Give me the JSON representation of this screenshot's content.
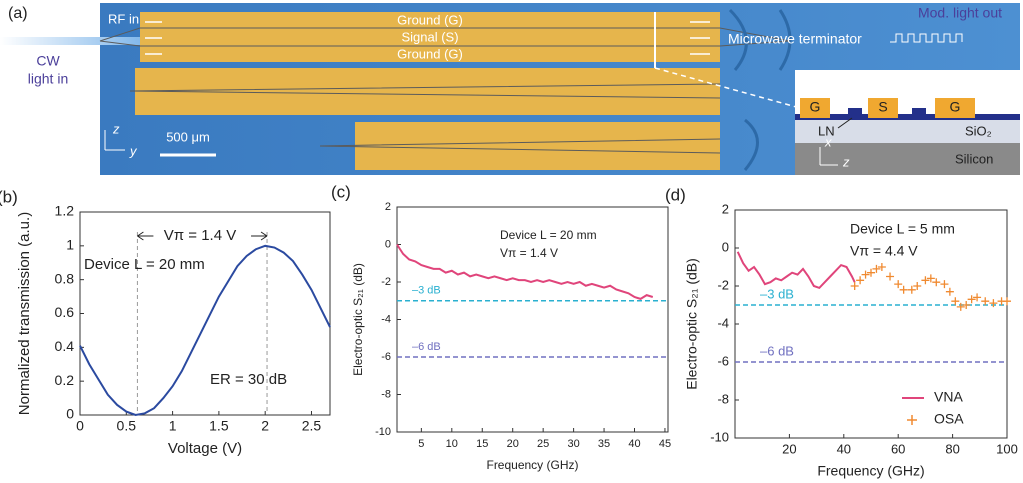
{
  "photo": {
    "label": "(a)",
    "rf_in": "RF in",
    "cw": "CW",
    "light_in": "light in",
    "strip_labels": [
      "Ground (G)",
      "Signal (S)",
      "Ground (G)"
    ],
    "terminator": "Microwave terminator",
    "light_out": "Mod. light out",
    "scale": "500 μm",
    "axis_z": "z",
    "axis_y": "y",
    "inset": {
      "electrodes": [
        "G",
        "S",
        "G"
      ],
      "ln": "LN",
      "sio2": "SiO₂",
      "axis_x": "x",
      "axis_z": "z",
      "silicon": "Silicon"
    }
  },
  "chart_data": [
    {
      "type": "line",
      "panel": "(b)",
      "xlabel": "Voltage (V)",
      "ylabel": "Normalized transmission (a.u.)",
      "x": [
        0,
        0.1,
        0.2,
        0.3,
        0.4,
        0.5,
        0.6,
        0.7,
        0.8,
        0.9,
        1.0,
        1.1,
        1.2,
        1.3,
        1.4,
        1.5,
        1.6,
        1.7,
        1.8,
        1.9,
        2.0,
        2.1,
        2.2,
        2.3,
        2.4,
        2.5,
        2.6,
        2.7
      ],
      "values": [
        0.41,
        0.3,
        0.21,
        0.12,
        0.06,
        0.02,
        0.0,
        0.01,
        0.04,
        0.1,
        0.17,
        0.26,
        0.37,
        0.48,
        0.59,
        0.7,
        0.79,
        0.88,
        0.94,
        0.98,
        1.0,
        0.99,
        0.96,
        0.91,
        0.83,
        0.74,
        0.63,
        0.52
      ],
      "color": "#2b4aa0",
      "xlim": [
        0,
        2.7
      ],
      "ylim": [
        0,
        1.2
      ],
      "xticks": [
        0,
        0.5,
        1,
        1.5,
        2,
        2.5
      ],
      "yticks": [
        0,
        0.2,
        0.4,
        0.6,
        0.8,
        1,
        1.2
      ],
      "vlines": [
        0.62,
        2.02
      ],
      "annotations": [
        "Vπ = 1.4 V",
        "Device L = 20 mm",
        "ER = 30 dB"
      ]
    },
    {
      "type": "line",
      "panel": "(c)",
      "xlabel": "Frequency (GHz)",
      "ylabel": "Electro-optic S₂₁ (dB)",
      "x": [
        1,
        2,
        3,
        4,
        5,
        6,
        7,
        8,
        9,
        10,
        11,
        12,
        13,
        14,
        15,
        16,
        17,
        18,
        19,
        20,
        21,
        22,
        23,
        24,
        25,
        26,
        27,
        28,
        29,
        30,
        31,
        32,
        33,
        34,
        35,
        36,
        37,
        38,
        39,
        40,
        41,
        42,
        43
      ],
      "values": [
        0,
        -0.5,
        -0.8,
        -0.9,
        -1.1,
        -1.2,
        -1.3,
        -1.3,
        -1.5,
        -1.4,
        -1.6,
        -1.5,
        -1.7,
        -1.6,
        -1.7,
        -1.8,
        -1.7,
        -1.8,
        -1.9,
        -1.8,
        -1.9,
        -1.9,
        -2.0,
        -1.9,
        -2.0,
        -1.9,
        -2.0,
        -2.1,
        -2.0,
        -2.1,
        -2.0,
        -2.2,
        -2.1,
        -2.2,
        -2.3,
        -2.2,
        -2.4,
        -2.5,
        -2.6,
        -2.8,
        -2.9,
        -2.7,
        -2.8
      ],
      "color": "#e0457b",
      "xlim": [
        1,
        45.5
      ],
      "ylim": [
        -10,
        2
      ],
      "xticks": [
        5,
        10,
        15,
        20,
        25,
        30,
        35,
        40,
        45
      ],
      "yticks": [
        -10,
        -8,
        -6,
        -4,
        -2,
        0,
        2
      ],
      "reflines": [
        {
          "value": -3,
          "label": "–3 dB",
          "color": "#2ab0d0"
        },
        {
          "value": -6,
          "label": "–6 dB",
          "color": "#7070c0"
        }
      ],
      "annotations": [
        "Device L = 20 mm",
        "Vπ = 1.4 V"
      ]
    },
    {
      "type": "line",
      "panel": "(d)",
      "xlabel": "Frequency (GHz)",
      "ylabel": "Electro-optic S₂₁ (dB)",
      "series": [
        {
          "name": "VNA",
          "color": "#e0457b",
          "marker": "line",
          "x": [
            1,
            3,
            5,
            7,
            9,
            11,
            13,
            15,
            17,
            19,
            21,
            23,
            25,
            27,
            29,
            31,
            33,
            35,
            37,
            39,
            41,
            43,
            44
          ],
          "values": [
            -0.2,
            -0.8,
            -1.2,
            -1.0,
            -1.4,
            -1.9,
            -1.8,
            -1.6,
            -1.7,
            -1.5,
            -1.3,
            -1.4,
            -1.1,
            -1.5,
            -2.0,
            -2.1,
            -1.8,
            -1.5,
            -1.2,
            -0.9,
            -1.0,
            -1.5,
            -1.8
          ]
        },
        {
          "name": "OSA",
          "color": "#f08a30",
          "marker": "plus",
          "x": [
            44,
            46,
            48,
            50,
            52,
            54,
            57,
            60,
            62,
            65,
            67,
            70,
            72,
            74,
            77,
            79,
            81,
            83,
            85,
            87,
            89,
            92,
            95,
            98,
            100
          ],
          "values": [
            -2.0,
            -1.7,
            -1.4,
            -1.3,
            -1.1,
            -1.0,
            -1.5,
            -1.9,
            -2.2,
            -2.2,
            -2.0,
            -1.7,
            -1.6,
            -1.8,
            -1.9,
            -2.3,
            -2.8,
            -3.1,
            -3.0,
            -2.7,
            -2.6,
            -2.8,
            -2.9,
            -2.8,
            -2.8
          ]
        }
      ],
      "xlim": [
        0,
        100
      ],
      "ylim": [
        -10,
        2
      ],
      "xticks": [
        20,
        40,
        60,
        80,
        100
      ],
      "yticks": [
        -10,
        -8,
        -6,
        -4,
        -2,
        0,
        2
      ],
      "reflines": [
        {
          "value": -3,
          "label": "–3 dB",
          "color": "#2ab0d0"
        },
        {
          "value": -6,
          "label": "–6 dB",
          "color": "#7070c0"
        }
      ],
      "legend": "lower right",
      "annotations": [
        "Device L = 5 mm",
        "Vπ = 4.4 V"
      ]
    }
  ]
}
